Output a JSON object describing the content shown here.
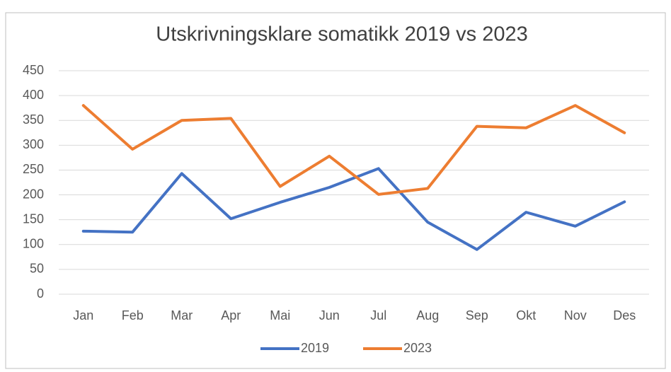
{
  "chart_data": {
    "type": "line",
    "title": "Utskrivningsklare somatikk 2019 vs 2023",
    "categories": [
      "Jan",
      "Feb",
      "Mar",
      "Apr",
      "Mai",
      "Jun",
      "Jul",
      "Aug",
      "Sep",
      "Okt",
      "Nov",
      "Des"
    ],
    "series": [
      {
        "name": "2019",
        "color": "#4472c4",
        "values": [
          127,
          125,
          243,
          152,
          185,
          215,
          253,
          145,
          90,
          165,
          137,
          186
        ]
      },
      {
        "name": "2023",
        "color": "#ed7d31",
        "values": [
          380,
          292,
          350,
          354,
          217,
          278,
          201,
          213,
          338,
          335,
          380,
          325
        ]
      }
    ],
    "ylim": [
      0,
      450
    ],
    "yticks": [
      0,
      50,
      100,
      150,
      200,
      250,
      300,
      350,
      400,
      450
    ],
    "grid": true,
    "legend": "bottom"
  }
}
